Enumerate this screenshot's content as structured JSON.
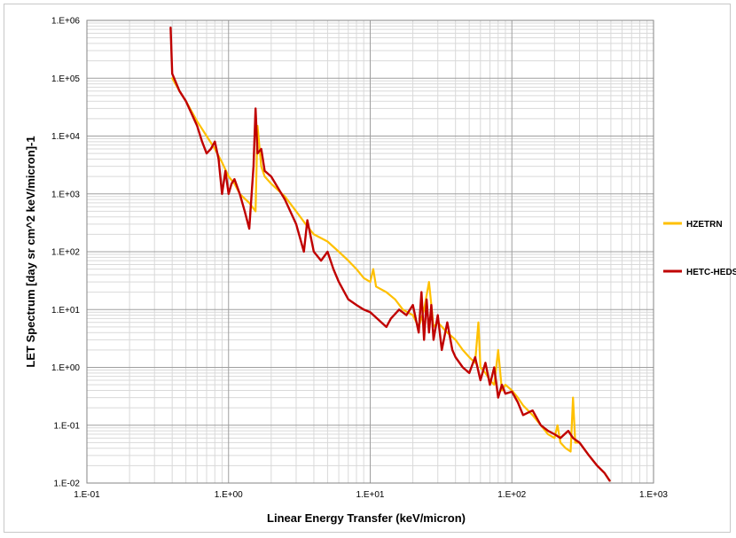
{
  "chart_data": {
    "type": "line",
    "title": "",
    "xlabel": "Linear Energy Transfer (keV/micron)",
    "ylabel": "LET Spectrum [day sr cm^2 keV/micron]-1",
    "xscale": "log",
    "yscale": "log",
    "xlim": [
      0.1,
      1000
    ],
    "ylim": [
      0.01,
      1000000
    ],
    "grid": "major and minor",
    "legend_position": "right",
    "x_tick_labels": [
      "1.E-01",
      "1.E+00",
      "1.E+01",
      "1.E+02",
      "1.E+03"
    ],
    "y_tick_labels": [
      "1.E-02",
      "1.E-01",
      "1.E+00",
      "1.E+01",
      "1.E+02",
      "1.E+03",
      "1.E+04",
      "1.E+05",
      "1.E+06"
    ],
    "series": [
      {
        "name": "HZETRN",
        "color": "#ffc000",
        "points": [
          [
            0.4,
            100000
          ],
          [
            0.45,
            60000
          ],
          [
            0.5,
            40000
          ],
          [
            0.6,
            18000
          ],
          [
            0.7,
            10000
          ],
          [
            0.8,
            6000
          ],
          [
            0.9,
            3500
          ],
          [
            1.0,
            2000
          ],
          [
            1.1,
            1500
          ],
          [
            1.2,
            1000
          ],
          [
            1.4,
            700
          ],
          [
            1.55,
            500
          ],
          [
            1.6,
            15000
          ],
          [
            1.7,
            3000
          ],
          [
            1.8,
            2000
          ],
          [
            2.0,
            1500
          ],
          [
            2.5,
            900
          ],
          [
            3.0,
            500
          ],
          [
            3.5,
            300
          ],
          [
            4.0,
            200
          ],
          [
            5.0,
            150
          ],
          [
            6.0,
            100
          ],
          [
            7.0,
            70
          ],
          [
            8.0,
            50
          ],
          [
            9.0,
            35
          ],
          [
            10.0,
            30
          ],
          [
            10.5,
            50
          ],
          [
            11.0,
            25
          ],
          [
            13.0,
            20
          ],
          [
            15.0,
            15
          ],
          [
            17.0,
            10
          ],
          [
            20.0,
            8
          ],
          [
            22.0,
            5
          ],
          [
            24.0,
            10
          ],
          [
            26.0,
            30
          ],
          [
            28.0,
            5
          ],
          [
            30.0,
            6
          ],
          [
            35.0,
            4
          ],
          [
            40.0,
            3
          ],
          [
            45.0,
            2
          ],
          [
            50.0,
            1.5
          ],
          [
            55.0,
            1.2
          ],
          [
            58.0,
            6
          ],
          [
            60.0,
            1
          ],
          [
            65.0,
            0.8
          ],
          [
            70.0,
            0.6
          ],
          [
            75.0,
            0.5
          ],
          [
            80.0,
            2
          ],
          [
            85.0,
            0.4
          ],
          [
            90.0,
            0.5
          ],
          [
            100,
            0.4
          ],
          [
            110,
            0.3
          ],
          [
            120,
            0.22
          ],
          [
            140,
            0.15
          ],
          [
            160,
            0.1
          ],
          [
            180,
            0.07
          ],
          [
            200,
            0.06
          ],
          [
            210,
            0.1
          ],
          [
            220,
            0.05
          ],
          [
            240,
            0.04
          ],
          [
            260,
            0.035
          ],
          [
            270,
            0.3
          ],
          [
            280,
            0.05
          ],
          [
            300,
            0.05
          ],
          [
            350,
            0.03
          ],
          [
            400,
            0.02
          ],
          [
            450,
            0.015
          ],
          [
            490,
            0.011
          ]
        ]
      },
      {
        "name": "HETC-HEDS",
        "color": "#c00000",
        "points": [
          [
            0.39,
            750000
          ],
          [
            0.4,
            120000
          ],
          [
            0.45,
            60000
          ],
          [
            0.5,
            40000
          ],
          [
            0.6,
            15000
          ],
          [
            0.65,
            8000
          ],
          [
            0.7,
            5000
          ],
          [
            0.75,
            6000
          ],
          [
            0.8,
            8000
          ],
          [
            0.85,
            4000
          ],
          [
            0.9,
            1000
          ],
          [
            0.95,
            2500
          ],
          [
            1.0,
            1000
          ],
          [
            1.05,
            1500
          ],
          [
            1.1,
            1800
          ],
          [
            1.2,
            1000
          ],
          [
            1.3,
            500
          ],
          [
            1.4,
            250
          ],
          [
            1.5,
            3000
          ],
          [
            1.55,
            30000
          ],
          [
            1.6,
            5000
          ],
          [
            1.7,
            6000
          ],
          [
            1.8,
            2500
          ],
          [
            2.0,
            2000
          ],
          [
            2.5,
            800
          ],
          [
            3.0,
            300
          ],
          [
            3.4,
            100
          ],
          [
            3.6,
            350
          ],
          [
            4.0,
            100
          ],
          [
            4.5,
            70
          ],
          [
            5.0,
            100
          ],
          [
            5.5,
            50
          ],
          [
            6.0,
            30
          ],
          [
            7.0,
            15
          ],
          [
            8.0,
            12
          ],
          [
            9.0,
            10
          ],
          [
            10.0,
            9
          ],
          [
            12.0,
            6
          ],
          [
            13.0,
            5
          ],
          [
            14.0,
            7
          ],
          [
            16.0,
            10
          ],
          [
            18.0,
            8
          ],
          [
            20.0,
            12
          ],
          [
            22.0,
            4
          ],
          [
            23.0,
            20
          ],
          [
            24.0,
            3
          ],
          [
            25.0,
            15
          ],
          [
            26.0,
            4
          ],
          [
            27.0,
            12
          ],
          [
            28.0,
            3
          ],
          [
            30.0,
            8
          ],
          [
            32.0,
            2
          ],
          [
            35.0,
            6
          ],
          [
            38.0,
            2
          ],
          [
            40.0,
            1.5
          ],
          [
            45.0,
            1
          ],
          [
            50.0,
            0.8
          ],
          [
            55.0,
            1.5
          ],
          [
            60.0,
            0.6
          ],
          [
            65.0,
            1.2
          ],
          [
            70.0,
            0.5
          ],
          [
            75.0,
            1
          ],
          [
            80.0,
            0.3
          ],
          [
            85.0,
            0.5
          ],
          [
            90.0,
            0.35
          ],
          [
            100,
            0.38
          ],
          [
            110,
            0.25
          ],
          [
            120,
            0.15
          ],
          [
            140,
            0.18
          ],
          [
            160,
            0.1
          ],
          [
            180,
            0.08
          ],
          [
            200,
            0.07
          ],
          [
            220,
            0.06
          ],
          [
            250,
            0.08
          ],
          [
            270,
            0.06
          ],
          [
            300,
            0.05
          ],
          [
            350,
            0.03
          ],
          [
            400,
            0.02
          ],
          [
            450,
            0.015
          ],
          [
            490,
            0.011
          ]
        ]
      }
    ]
  }
}
